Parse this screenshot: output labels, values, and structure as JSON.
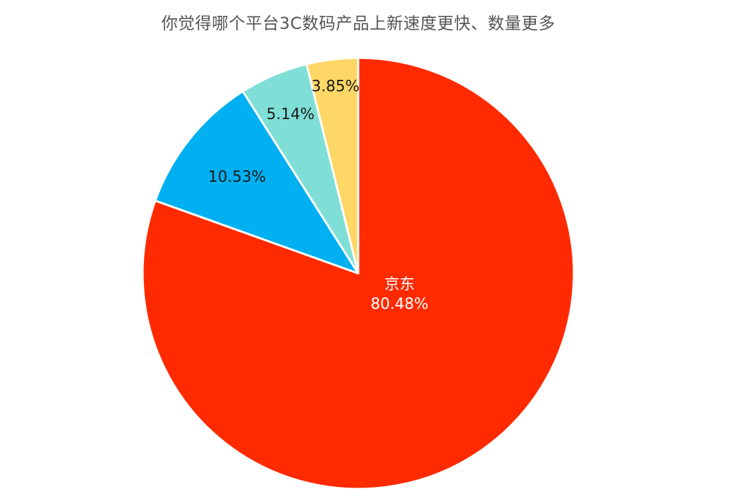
{
  "chart_data": {
    "type": "pie",
    "title": "你觉得哪个平台3C数码产品上新速度更快、数量更多",
    "slices": [
      {
        "label": "京东",
        "value": 80.48,
        "value_label": "80.48%",
        "color": "#ff2a00",
        "text_color": "#ffffff"
      },
      {
        "label": "",
        "value": 10.53,
        "value_label": "10.53%",
        "color": "#00b0f0",
        "text_color": "#1a1a1a"
      },
      {
        "label": "",
        "value": 5.14,
        "value_label": "5.14%",
        "color": "#7fdfd6",
        "text_color": "#1a1a1a"
      },
      {
        "label": "",
        "value": 3.85,
        "value_label": "3.85%",
        "color": "#ffd766",
        "text_color": "#1a1a1a"
      }
    ],
    "start_angle": "12 o'clock",
    "direction": "clockwise",
    "legend": "none"
  }
}
